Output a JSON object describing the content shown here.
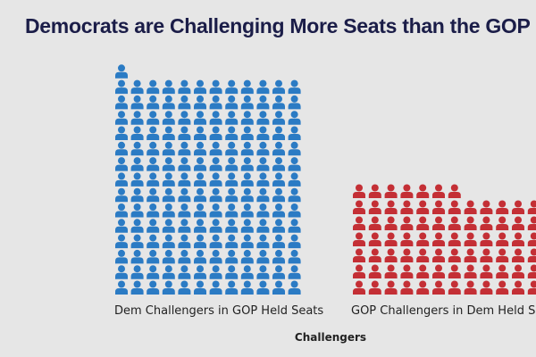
{
  "chart_data": {
    "type": "pictogram",
    "title": "Democrats are Challenging More Seats than the GOP",
    "xlabel": "Challengers",
    "categories": [
      "Dem Challengers in GOP Held Seats",
      "GOP Challengers in Dem Held Seats"
    ],
    "series": [
      {
        "name": "Dem Challengers in GOP Held Seats",
        "value": 169,
        "color": "#2b7bc4"
      },
      {
        "name": "GOP Challengers in Dem Held Seats",
        "value": 85,
        "color": "#c42f35"
      }
    ],
    "unit_icon": "person-icon"
  }
}
